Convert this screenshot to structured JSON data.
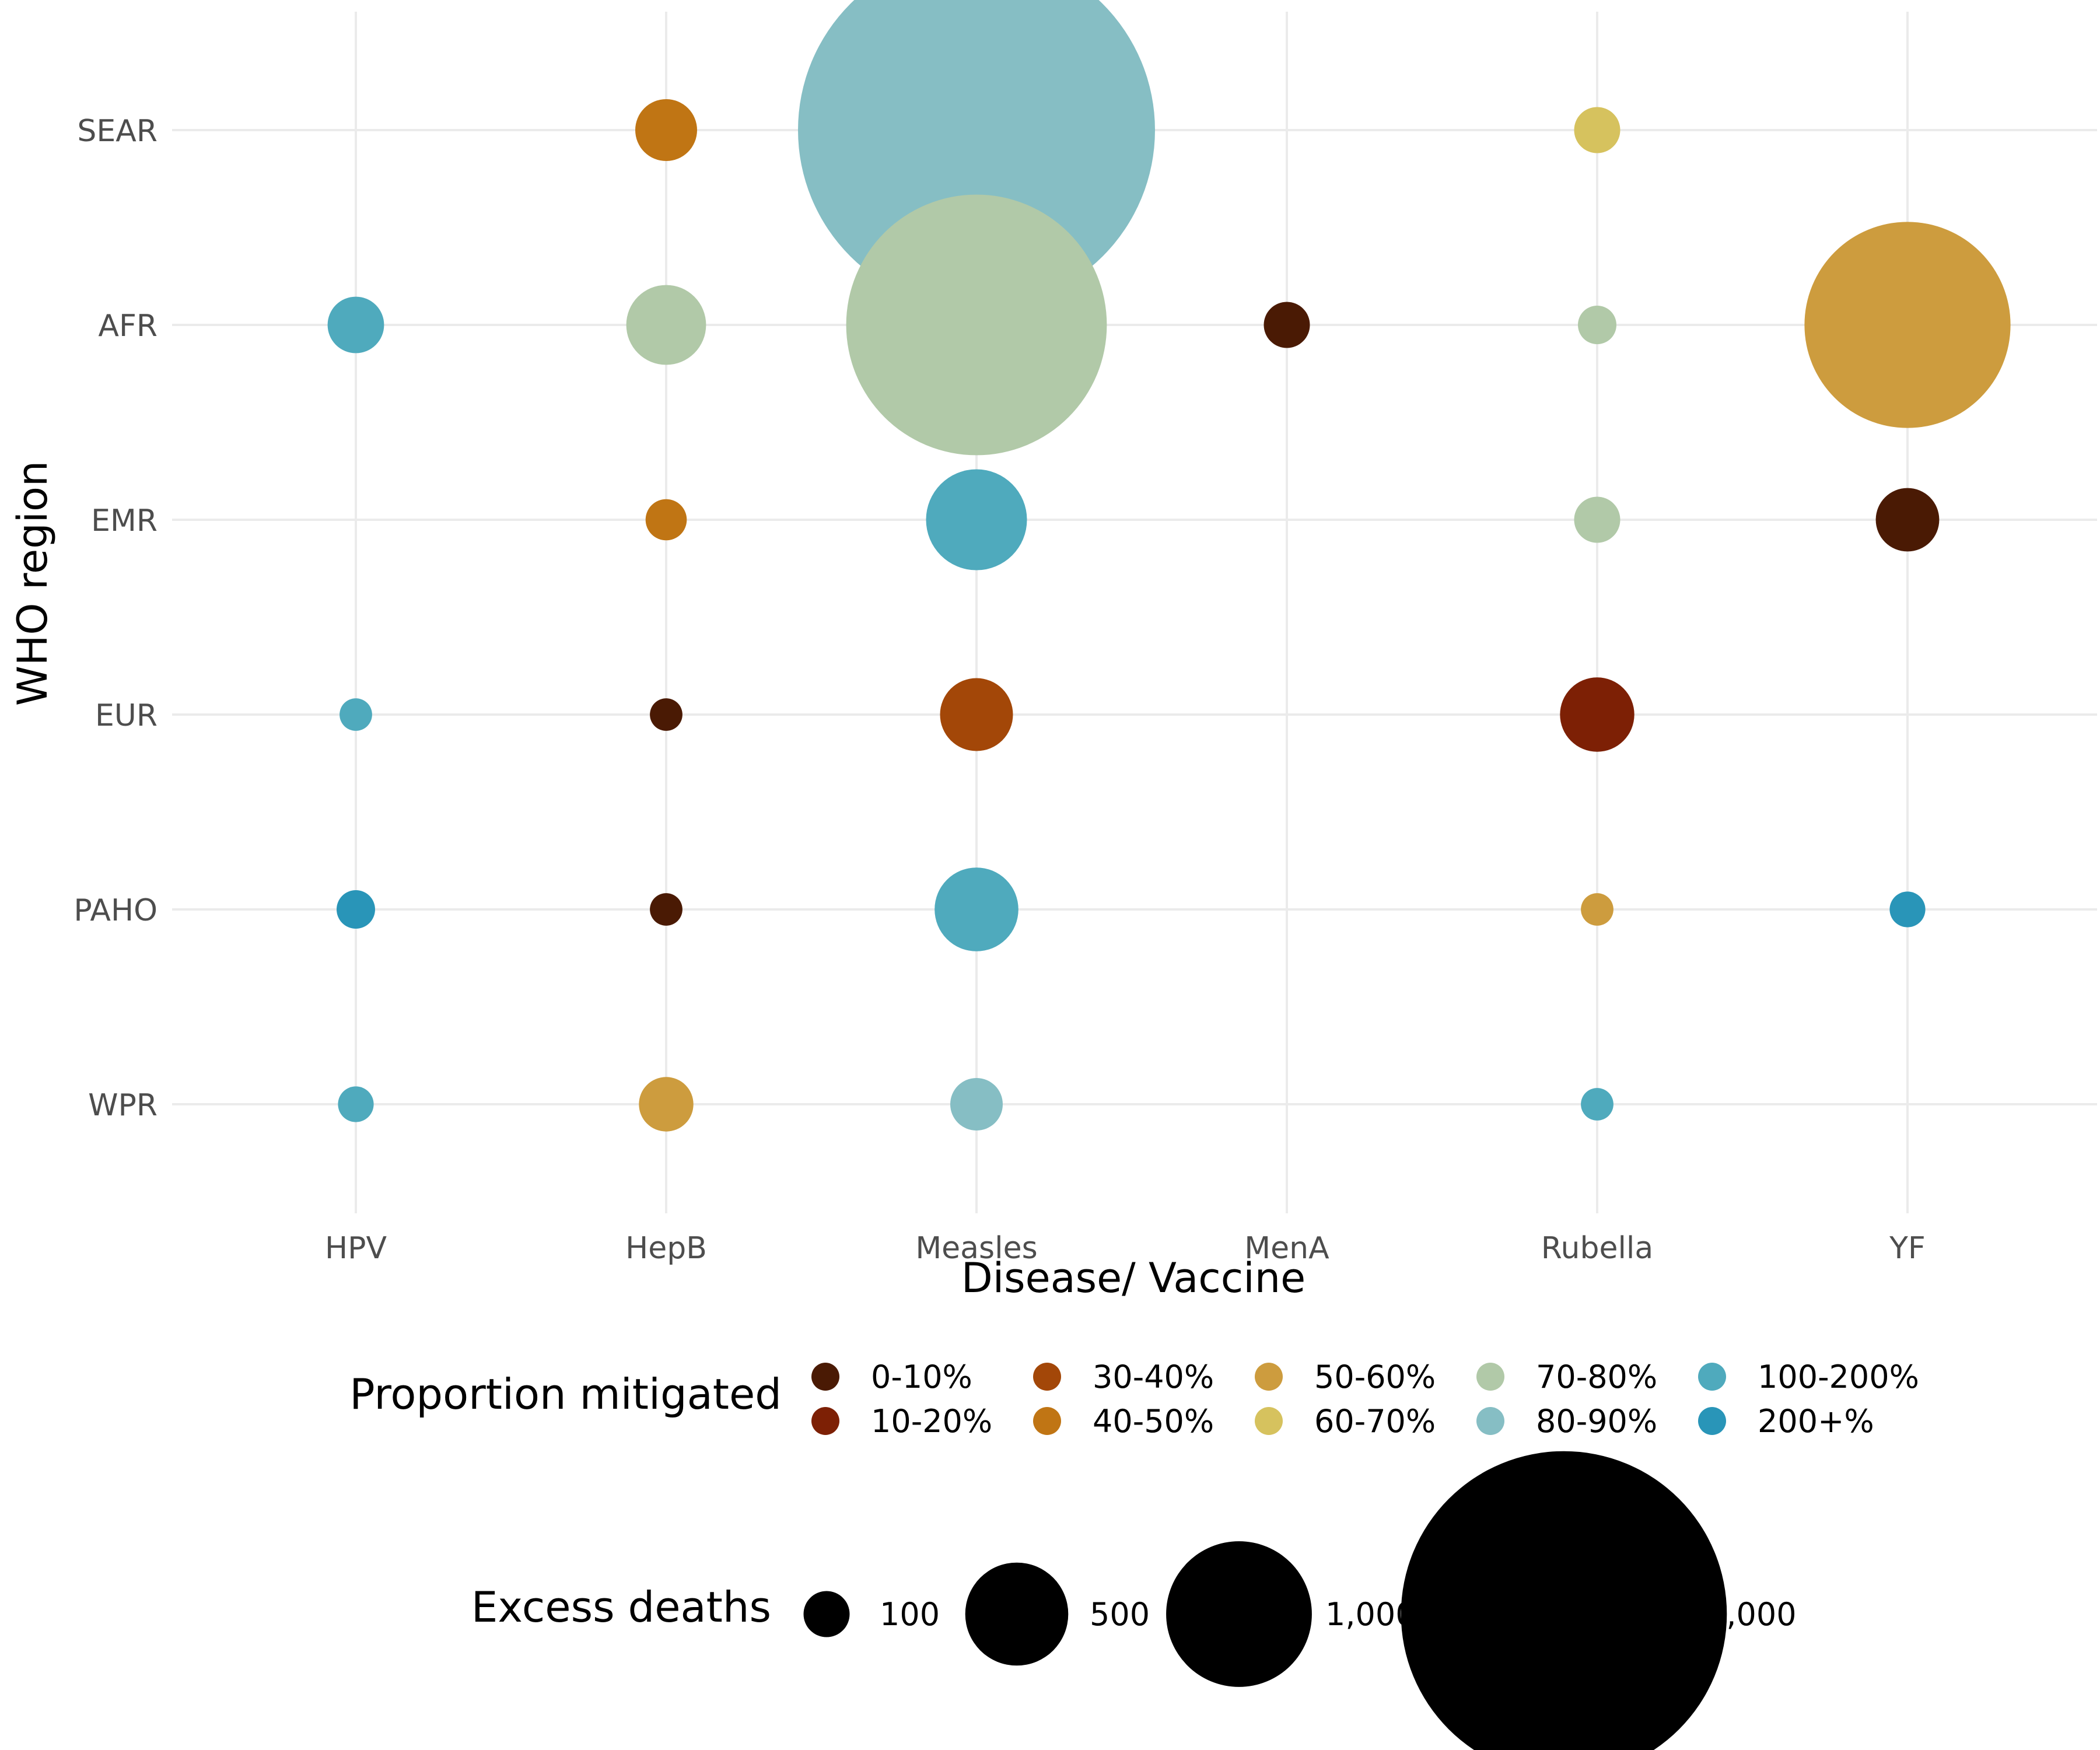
{
  "chart_data": {
    "type": "scatter",
    "xlabel": "Disease/ Vaccine",
    "ylabel": "WHO region",
    "x_categories": [
      "HPV",
      "HepB",
      "Measles",
      "MenA",
      "Rubella",
      "YF"
    ],
    "y_categories": [
      "SEAR",
      "AFR",
      "EMR",
      "EUR",
      "PAHO",
      "WPR"
    ],
    "grid": true,
    "legend_position": "bottom",
    "color_legend": {
      "title": "Proportion mitigated",
      "entries": [
        {
          "label": "0-10%",
          "color": "#4a1a04"
        },
        {
          "label": "10-20%",
          "color": "#7d2005"
        },
        {
          "label": "30-40%",
          "color": "#a34708"
        },
        {
          "label": "40-50%",
          "color": "#c07514"
        },
        {
          "label": "50-60%",
          "color": "#cd9c3e"
        },
        {
          "label": "60-70%",
          "color": "#d6c25e"
        },
        {
          "label": "70-80%",
          "color": "#b1c9a8"
        },
        {
          "label": "80-90%",
          "color": "#86bec4"
        },
        {
          "label": "100-200%",
          "color": "#4faabd"
        },
        {
          "label": "200+%",
          "color": "#2995b8"
        }
      ]
    },
    "size_legend": {
      "title": "Excess deaths",
      "entries": [
        {
          "label": "100",
          "value": 100
        },
        {
          "label": "500",
          "value": 500
        },
        {
          "label": "1,000",
          "value": 1000
        },
        {
          "label": "5,000",
          "value": 5000
        }
      ]
    },
    "points": [
      {
        "x": "HepB",
        "y": "SEAR",
        "excess_deaths": 180,
        "proportion": "40-50%"
      },
      {
        "x": "Measles",
        "y": "SEAR",
        "excess_deaths": 6000,
        "proportion": "80-90%"
      },
      {
        "x": "Rubella",
        "y": "SEAR",
        "excess_deaths": 100,
        "proportion": "60-70%"
      },
      {
        "x": "HPV",
        "y": "AFR",
        "excess_deaths": 150,
        "proportion": "100-200%"
      },
      {
        "x": "HepB",
        "y": "AFR",
        "excess_deaths": 300,
        "proportion": "70-80%"
      },
      {
        "x": "Measles",
        "y": "AFR",
        "excess_deaths": 3200,
        "proportion": "70-80%"
      },
      {
        "x": "MenA",
        "y": "AFR",
        "excess_deaths": 100,
        "proportion": "0-10%"
      },
      {
        "x": "Rubella",
        "y": "AFR",
        "excess_deaths": 70,
        "proportion": "70-80%"
      },
      {
        "x": "YF",
        "y": "AFR",
        "excess_deaths": 2000,
        "proportion": "50-60%"
      },
      {
        "x": "HepB",
        "y": "EMR",
        "excess_deaths": 80,
        "proportion": "40-50%"
      },
      {
        "x": "Measles",
        "y": "EMR",
        "excess_deaths": 480,
        "proportion": "100-200%"
      },
      {
        "x": "Rubella",
        "y": "EMR",
        "excess_deaths": 100,
        "proportion": "70-80%"
      },
      {
        "x": "YF",
        "y": "EMR",
        "excess_deaths": 190,
        "proportion": "0-10%"
      },
      {
        "x": "HPV",
        "y": "EUR",
        "excess_deaths": 50,
        "proportion": "100-200%"
      },
      {
        "x": "HepB",
        "y": "EUR",
        "excess_deaths": 50,
        "proportion": "0-10%"
      },
      {
        "x": "Measles",
        "y": "EUR",
        "excess_deaths": 250,
        "proportion": "30-40%"
      },
      {
        "x": "Rubella",
        "y": "EUR",
        "excess_deaths": 260,
        "proportion": "10-20%"
      },
      {
        "x": "HPV",
        "y": "PAHO",
        "excess_deaths": 70,
        "proportion": "200+%"
      },
      {
        "x": "HepB",
        "y": "PAHO",
        "excess_deaths": 50,
        "proportion": "0-10%"
      },
      {
        "x": "Measles",
        "y": "PAHO",
        "excess_deaths": 330,
        "proportion": "100-200%"
      },
      {
        "x": "Rubella",
        "y": "PAHO",
        "excess_deaths": 50,
        "proportion": "50-60%"
      },
      {
        "x": "YF",
        "y": "PAHO",
        "excess_deaths": 60,
        "proportion": "200+%"
      },
      {
        "x": "HPV",
        "y": "WPR",
        "excess_deaths": 60,
        "proportion": "100-200%"
      },
      {
        "x": "HepB",
        "y": "WPR",
        "excess_deaths": 140,
        "proportion": "50-60%"
      },
      {
        "x": "Measles",
        "y": "WPR",
        "excess_deaths": 130,
        "proportion": "80-90%"
      },
      {
        "x": "Rubella",
        "y": "WPR",
        "excess_deaths": 50,
        "proportion": "100-200%"
      }
    ]
  }
}
